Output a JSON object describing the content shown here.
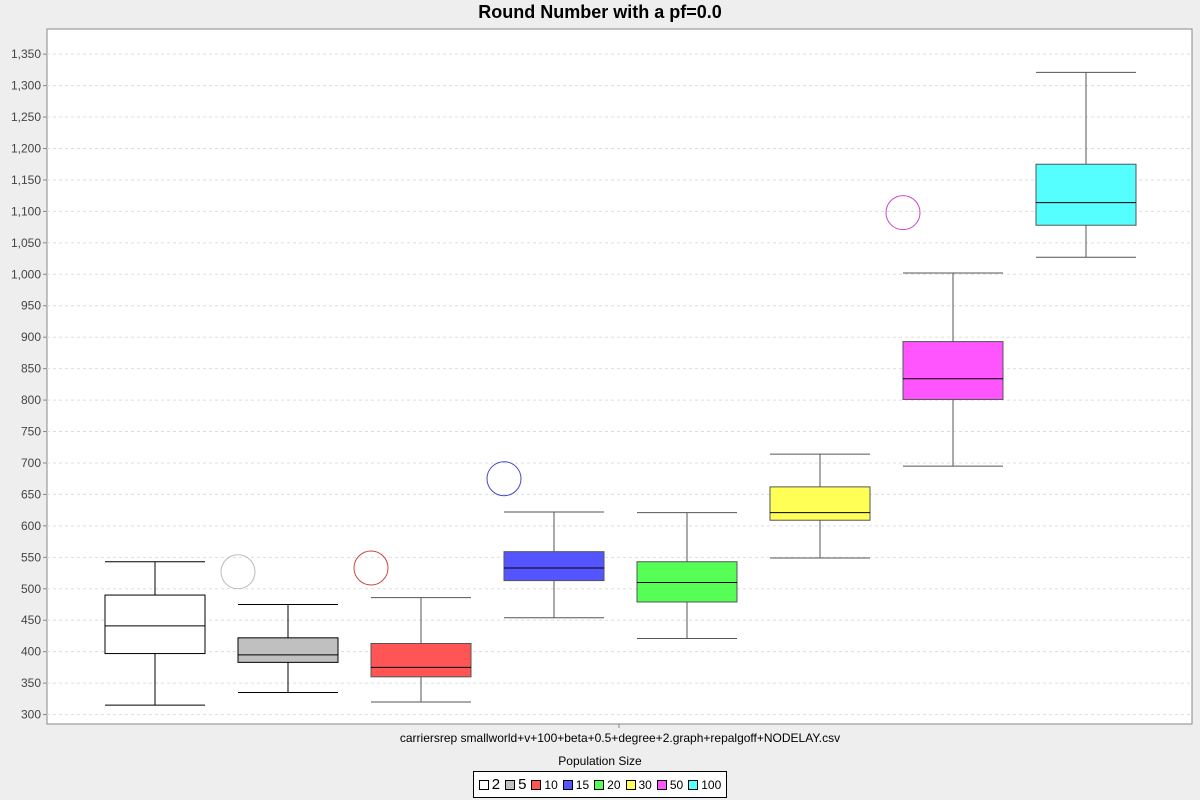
{
  "chart_data": {
    "type": "boxplot",
    "title": "Round Number with a pf=0.0",
    "category": "carriersrep smallworld+v+100+beta+0.5+degree+2.graph+repalgoff+NODELAY.csv",
    "legend_title": "Population Size",
    "legend_placement": "bottom",
    "ylim": [
      285,
      1390
    ],
    "y_ticks": [
      300,
      350,
      400,
      450,
      500,
      550,
      600,
      650,
      700,
      750,
      800,
      850,
      900,
      950,
      1000,
      1050,
      1100,
      1150,
      1200,
      1250,
      1300,
      1350
    ],
    "y_tick_labels": [
      "300",
      "350",
      "400",
      "450",
      "500",
      "550",
      "600",
      "650",
      "700",
      "750",
      "800",
      "850",
      "900",
      "950",
      "1,000",
      "1,050",
      "1,100",
      "1,150",
      "1,200",
      "1,250",
      "1,300",
      "1,350"
    ],
    "grid": true,
    "series": [
      {
        "name": "2",
        "color": "#ffffff",
        "outline": "#000000",
        "whisker_low": 315,
        "q1": 397,
        "median": 441,
        "q3": 490,
        "whisker_high": 543,
        "outliers": []
      },
      {
        "name": "5",
        "color": "#c0c0c0",
        "outline": "#000000",
        "whisker_low": 335,
        "q1": 383,
        "median": 395,
        "q3": 422,
        "whisker_high": 475,
        "outliers": [
          527
        ]
      },
      {
        "name": "10",
        "color": "#ff5555",
        "outline": "#555555",
        "whisker_low": 320,
        "q1": 360,
        "median": 375,
        "q3": 413,
        "whisker_high": 486,
        "outliers": [
          533
        ]
      },
      {
        "name": "15",
        "color": "#5555ff",
        "outline": "#555555",
        "whisker_low": 454,
        "q1": 513,
        "median": 533,
        "q3": 559,
        "whisker_high": 622,
        "outliers": [
          675
        ]
      },
      {
        "name": "20",
        "color": "#55ff55",
        "outline": "#555555",
        "whisker_low": 421,
        "q1": 479,
        "median": 510,
        "q3": 543,
        "whisker_high": 621,
        "outliers": []
      },
      {
        "name": "30",
        "color": "#ffff55",
        "outline": "#555555",
        "whisker_low": 549,
        "q1": 609,
        "median": 621,
        "q3": 662,
        "whisker_high": 714,
        "outliers": []
      },
      {
        "name": "50",
        "color": "#ff55ff",
        "outline": "#555555",
        "whisker_low": 695,
        "q1": 801,
        "median": 834,
        "q3": 893,
        "whisker_high": 1002,
        "outliers": [
          1098
        ]
      },
      {
        "name": "100",
        "color": "#55ffff",
        "outline": "#555555",
        "whisker_low": 1027,
        "q1": 1078,
        "median": 1114,
        "q3": 1175,
        "whisker_high": 1321,
        "outliers": []
      }
    ]
  }
}
